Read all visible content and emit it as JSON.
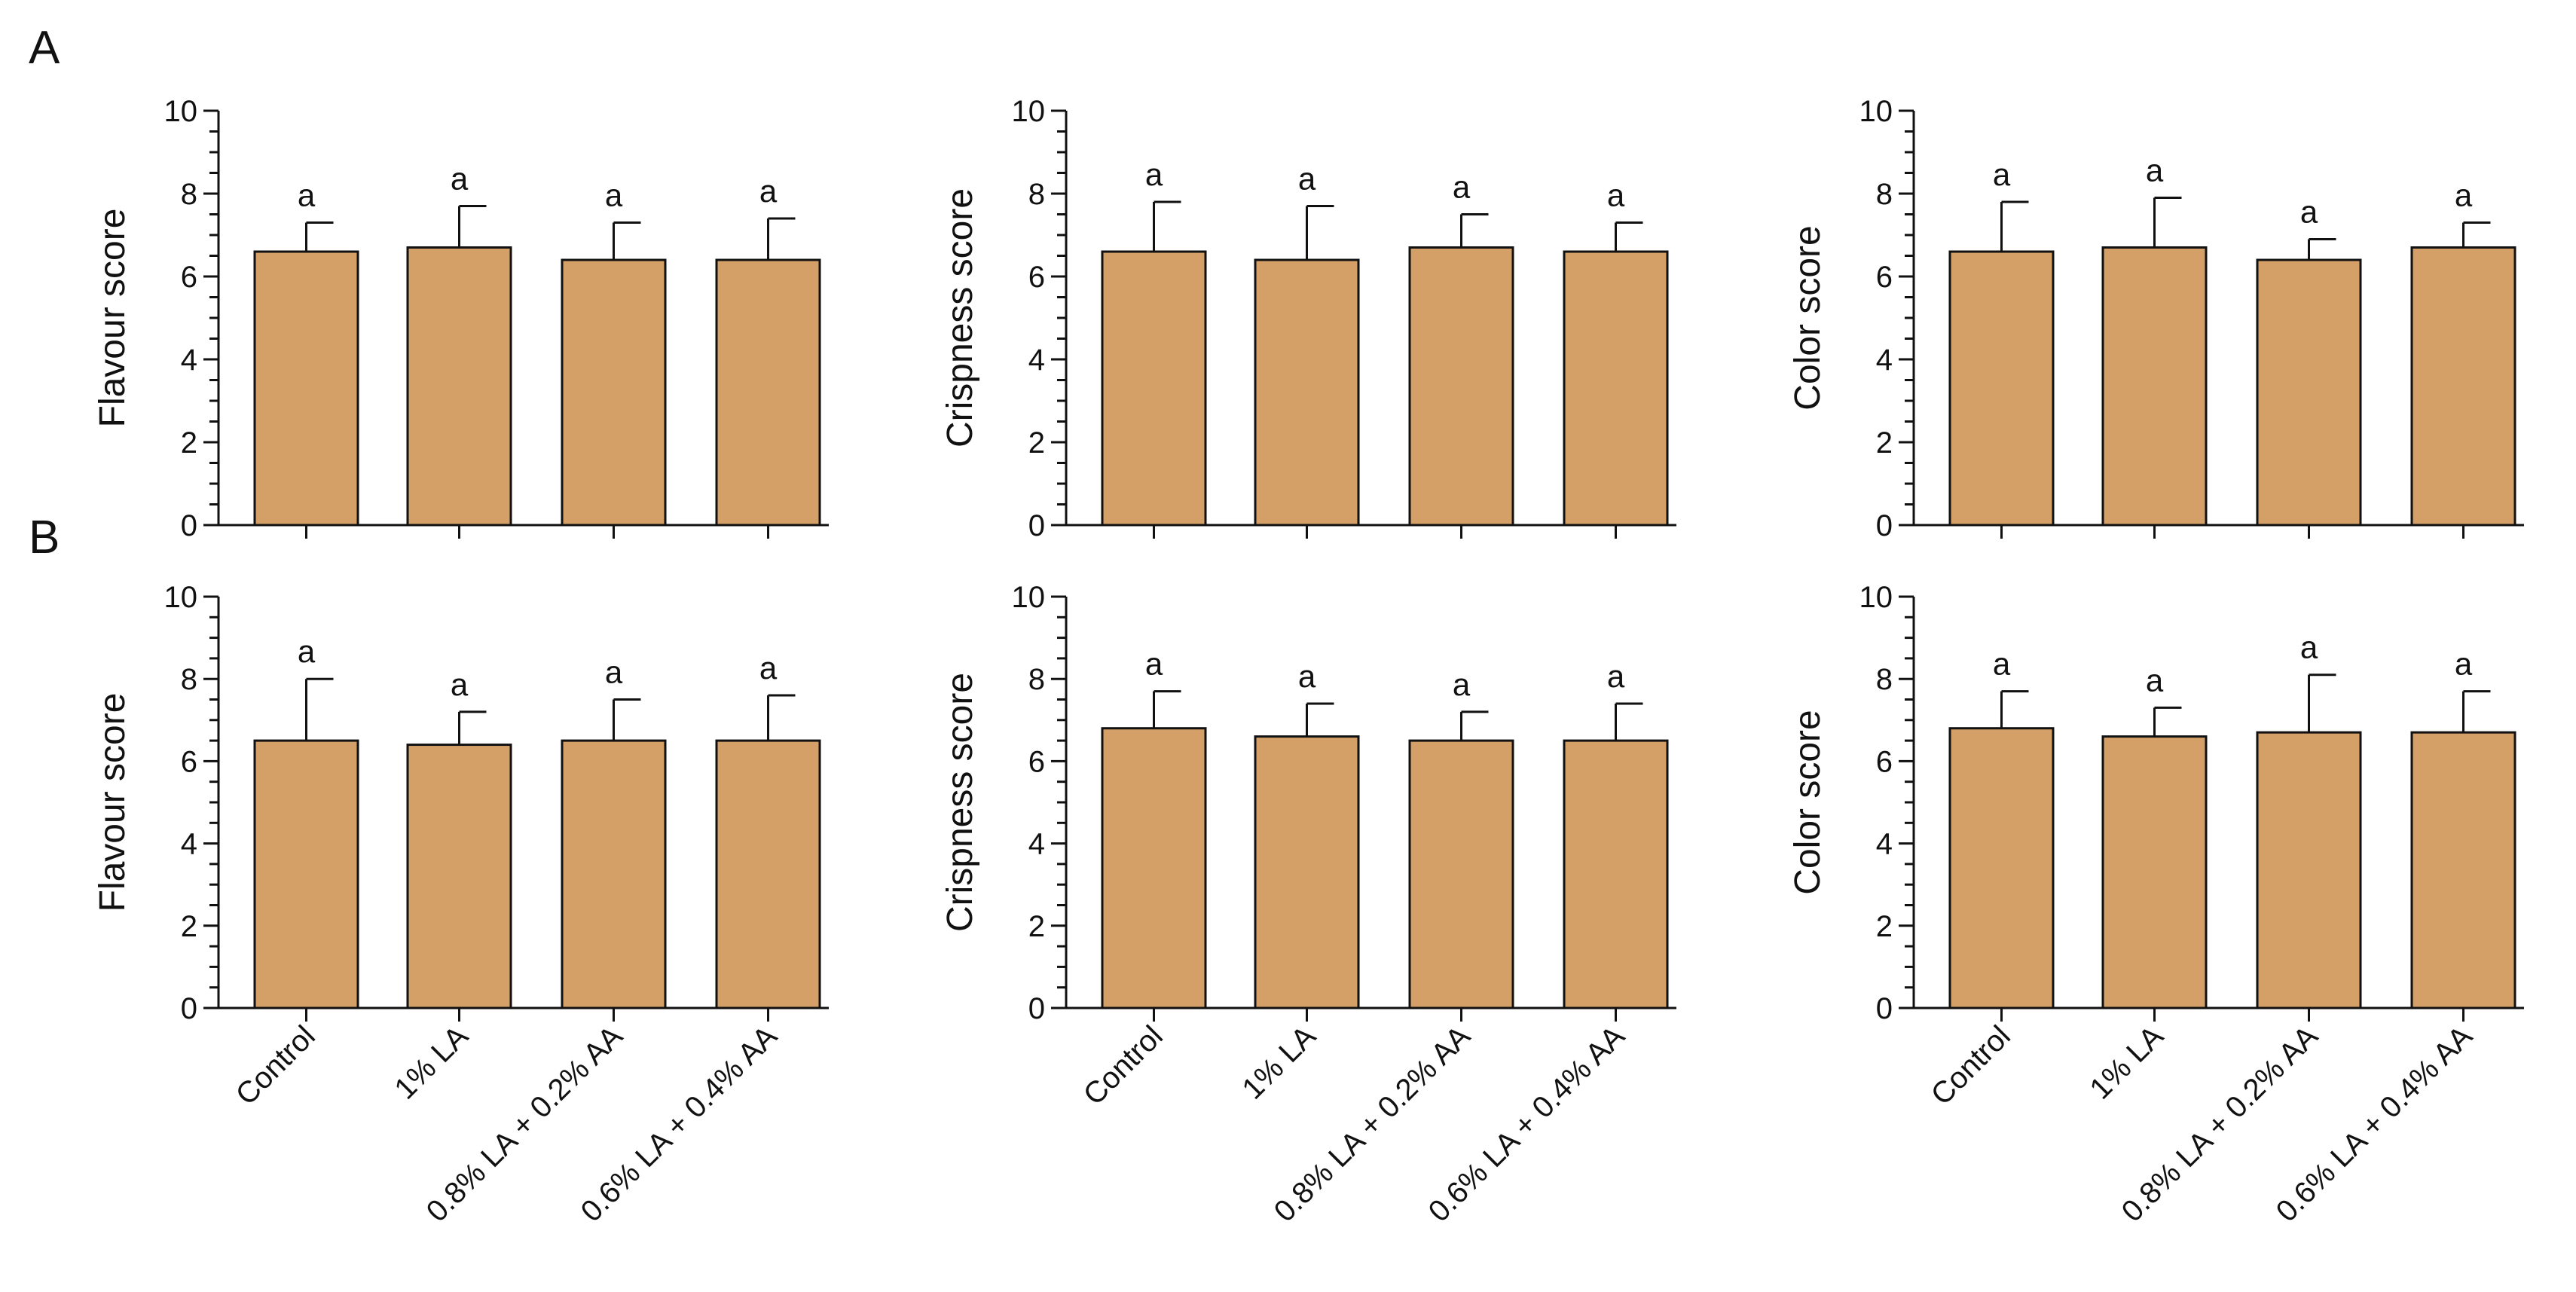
{
  "panel_labels": [
    "A",
    "B"
  ],
  "colors": {
    "bar_fill": "#d4a068",
    "axis": "#111111"
  },
  "chart_data": [
    {
      "id": "A-flavour",
      "type": "bar",
      "title": "",
      "xlabel": "",
      "ylabel": "Flavour score",
      "ylim": [
        0,
        10
      ],
      "yticks": [
        "0",
        "2",
        "4",
        "6",
        "8",
        "10"
      ],
      "categories": [
        "Control",
        "1% LA",
        "0.8% LA + 0.2% AA",
        "0.6% LA + 0.4% AA"
      ],
      "values": [
        6.6,
        6.7,
        6.4,
        6.4
      ],
      "errors": [
        0.7,
        1.0,
        0.9,
        1.0
      ],
      "labels": [
        "a",
        "a",
        "a",
        "a"
      ]
    },
    {
      "id": "A-crispness",
      "type": "bar",
      "title": "",
      "xlabel": "",
      "ylabel": "Crispness score",
      "ylim": [
        0,
        10
      ],
      "yticks": [
        "0",
        "2",
        "4",
        "6",
        "8",
        "10"
      ],
      "categories": [
        "Control",
        "1% LA",
        "0.8% LA + 0.2% AA",
        "0.6% LA + 0.4% AA"
      ],
      "values": [
        6.6,
        6.4,
        6.7,
        6.6
      ],
      "errors": [
        1.2,
        1.3,
        0.8,
        0.7
      ],
      "labels": [
        "a",
        "a",
        "a",
        "a"
      ]
    },
    {
      "id": "A-color",
      "type": "bar",
      "title": "",
      "xlabel": "",
      "ylabel": "Color score",
      "ylim": [
        0,
        10
      ],
      "yticks": [
        "0",
        "2",
        "4",
        "6",
        "8",
        "10"
      ],
      "categories": [
        "Control",
        "1% LA",
        "0.8% LA + 0.2% AA",
        "0.6% LA + 0.4% AA"
      ],
      "values": [
        6.6,
        6.7,
        6.4,
        6.7
      ],
      "errors": [
        1.2,
        1.2,
        0.5,
        0.6
      ],
      "labels": [
        "a",
        "a",
        "a",
        "a"
      ]
    },
    {
      "id": "B-flavour",
      "type": "bar",
      "title": "",
      "xlabel": "",
      "ylabel": "Flavour score",
      "ylim": [
        0,
        10
      ],
      "yticks": [
        "0",
        "2",
        "4",
        "6",
        "8",
        "10"
      ],
      "categories": [
        "Control",
        "1% LA",
        "0.8% LA + 0.2% AA",
        "0.6% LA + 0.4% AA"
      ],
      "values": [
        6.5,
        6.4,
        6.5,
        6.5
      ],
      "errors": [
        1.5,
        0.8,
        1.0,
        1.1
      ],
      "labels": [
        "a",
        "a",
        "a",
        "a"
      ]
    },
    {
      "id": "B-crispness",
      "type": "bar",
      "title": "",
      "xlabel": "",
      "ylabel": "Crispness score",
      "ylim": [
        0,
        10
      ],
      "yticks": [
        "0",
        "2",
        "4",
        "6",
        "8",
        "10"
      ],
      "categories": [
        "Control",
        "1% LA",
        "0.8% LA + 0.2% AA",
        "0.6% LA + 0.4% AA"
      ],
      "values": [
        6.8,
        6.6,
        6.5,
        6.5
      ],
      "errors": [
        0.9,
        0.8,
        0.7,
        0.9
      ],
      "labels": [
        "a",
        "a",
        "a",
        "a"
      ]
    },
    {
      "id": "B-color",
      "type": "bar",
      "title": "",
      "xlabel": "",
      "ylabel": "Color score",
      "ylim": [
        0,
        10
      ],
      "yticks": [
        "0",
        "2",
        "4",
        "6",
        "8",
        "10"
      ],
      "categories": [
        "Control",
        "1% LA",
        "0.8% LA + 0.2% AA",
        "0.6% LA + 0.4% AA"
      ],
      "values": [
        6.8,
        6.6,
        6.7,
        6.7
      ],
      "errors": [
        0.9,
        0.7,
        1.4,
        1.0
      ],
      "labels": [
        "a",
        "a",
        "a",
        "a"
      ]
    }
  ]
}
